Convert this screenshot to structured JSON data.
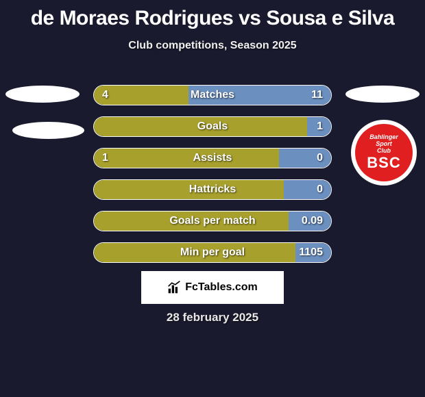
{
  "header": {
    "title": "de Moraes Rodrigues vs Sousa e Silva",
    "subtitle": "Club competitions, Season 2025"
  },
  "colors": {
    "background": "#1a1a2e",
    "left_player": "#a8a02c",
    "right_player": "#6b8fbf",
    "bar_border": "#ffffff",
    "text": "#ffffff",
    "badge_bg": "#ffffff",
    "badge_inner": "#e02020"
  },
  "bars": [
    {
      "label": "Matches",
      "left_value": "4",
      "right_value": "11",
      "left_pct": 40,
      "right_pct": 60
    },
    {
      "label": "Goals",
      "left_value": "",
      "right_value": "1",
      "left_pct": 90,
      "right_pct": 10
    },
    {
      "label": "Assists",
      "left_value": "1",
      "right_value": "0",
      "left_pct": 78,
      "right_pct": 22
    },
    {
      "label": "Hattricks",
      "left_value": "",
      "right_value": "0",
      "left_pct": 80,
      "right_pct": 20
    },
    {
      "label": "Goals per match",
      "left_value": "",
      "right_value": "0.09",
      "left_pct": 82,
      "right_pct": 18
    },
    {
      "label": "Min per goal",
      "left_value": "",
      "right_value": "1105",
      "left_pct": 85,
      "right_pct": 15
    }
  ],
  "badge": {
    "line1": "Bahlinger",
    "line2": "Sport",
    "line3": "Club",
    "abbr": "BSC"
  },
  "attribution": {
    "text": "FcTables.com"
  },
  "date": "28 february 2025"
}
